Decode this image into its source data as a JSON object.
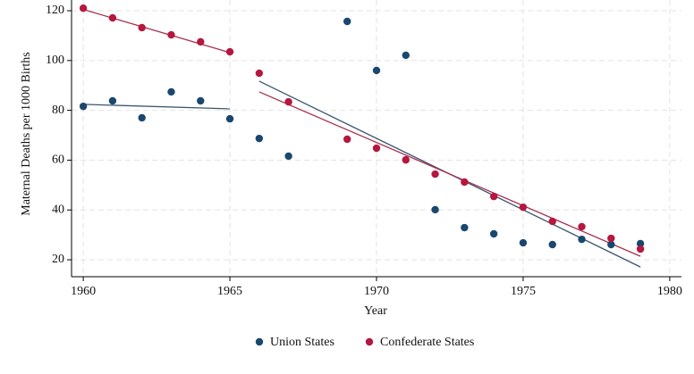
{
  "chart_data": {
    "type": "scatter",
    "y_label": "Maternal Deaths per 1000 Births",
    "x_label": "Year",
    "x": [
      1960,
      1961,
      1962,
      1963,
      1964,
      1965,
      1966,
      1967,
      1969,
      1970,
      1971,
      1972,
      1973,
      1974,
      1975,
      1976,
      1977,
      1978,
      1979
    ],
    "series": [
      {
        "name": "Union States",
        "color": "#1a476f",
        "values": [
          81.6,
          83.8,
          77.0,
          87.4,
          83.8,
          76.6,
          68.7,
          61.6,
          115.7,
          96.0,
          102.1,
          40.1,
          32.9,
          30.4,
          26.8,
          26.1,
          28.2,
          26.1,
          26.5
        ]
      },
      {
        "name": "Confederate States",
        "color": "#b5173f",
        "values": [
          121,
          117.1,
          113.2,
          110.3,
          107.5,
          103.5,
          94.9,
          83.4,
          68.4,
          64.8,
          60.1,
          54.4,
          51.2,
          45.4,
          41.1,
          35.4,
          33.3,
          28.6,
          24.3
        ]
      }
    ],
    "fit_lines": [
      {
        "color": "#3a5670",
        "x": [
          1960,
          1965
        ],
        "values": [
          82.4,
          80.6
        ]
      },
      {
        "color": "#3a5670",
        "x": [
          1966,
          1979
        ],
        "values": [
          91.7,
          17.1
        ]
      },
      {
        "color": "#a8324f",
        "x": [
          1960,
          1965
        ],
        "values": [
          120.5,
          103.2
        ]
      },
      {
        "color": "#a8324f",
        "x": [
          1966,
          1979
        ],
        "values": [
          87.4,
          21.4
        ]
      }
    ],
    "xlim": [
      1959.6,
      1980.4
    ],
    "ylim": [
      13.2,
      124.3
    ],
    "xticks": [
      1960,
      1965,
      1970,
      1975,
      1980
    ],
    "yticks": [
      20,
      40,
      60,
      80,
      100,
      120
    ],
    "grid": true
  }
}
